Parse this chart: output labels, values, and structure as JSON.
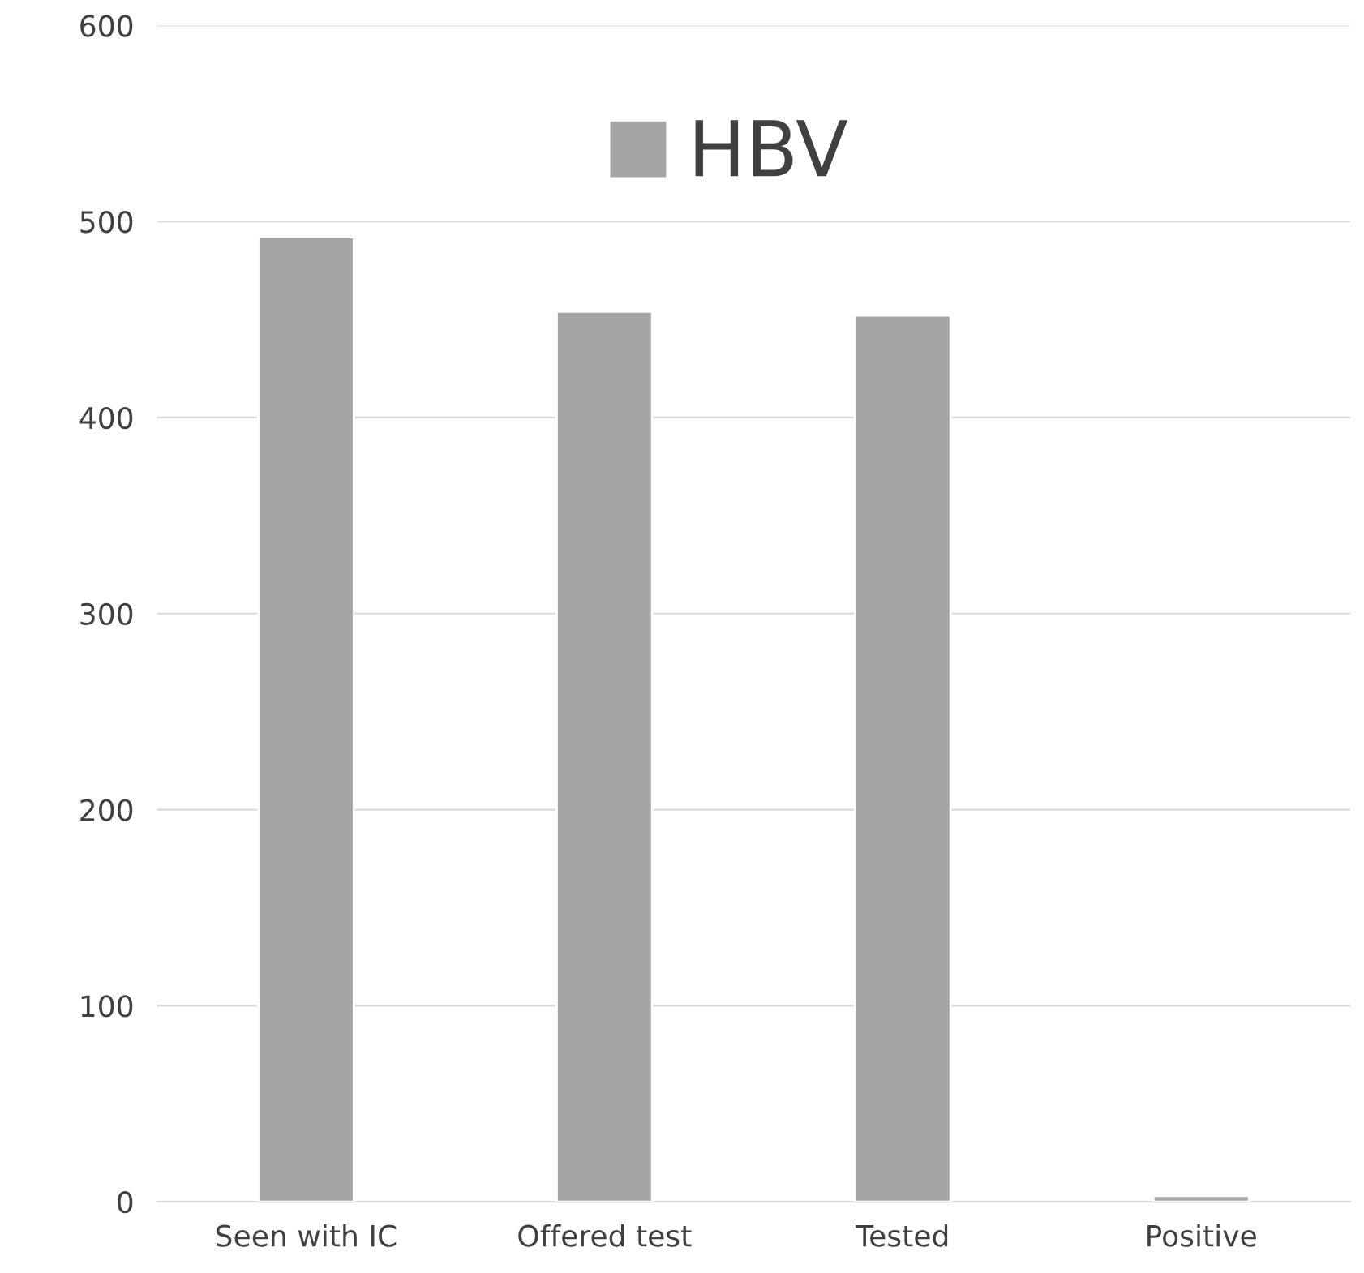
{
  "chart_data": {
    "type": "bar",
    "categories": [
      "Seen with IC",
      "Offered test",
      "Tested",
      "Positive"
    ],
    "series": [
      {
        "name": "HBV",
        "color": "#a5a5a5",
        "values": [
          492,
          454,
          452,
          3
        ]
      }
    ],
    "ylim": [
      0,
      600
    ],
    "yticks": [
      0,
      100,
      200,
      300,
      400,
      500,
      600
    ],
    "grid": "y",
    "legend": "top"
  }
}
